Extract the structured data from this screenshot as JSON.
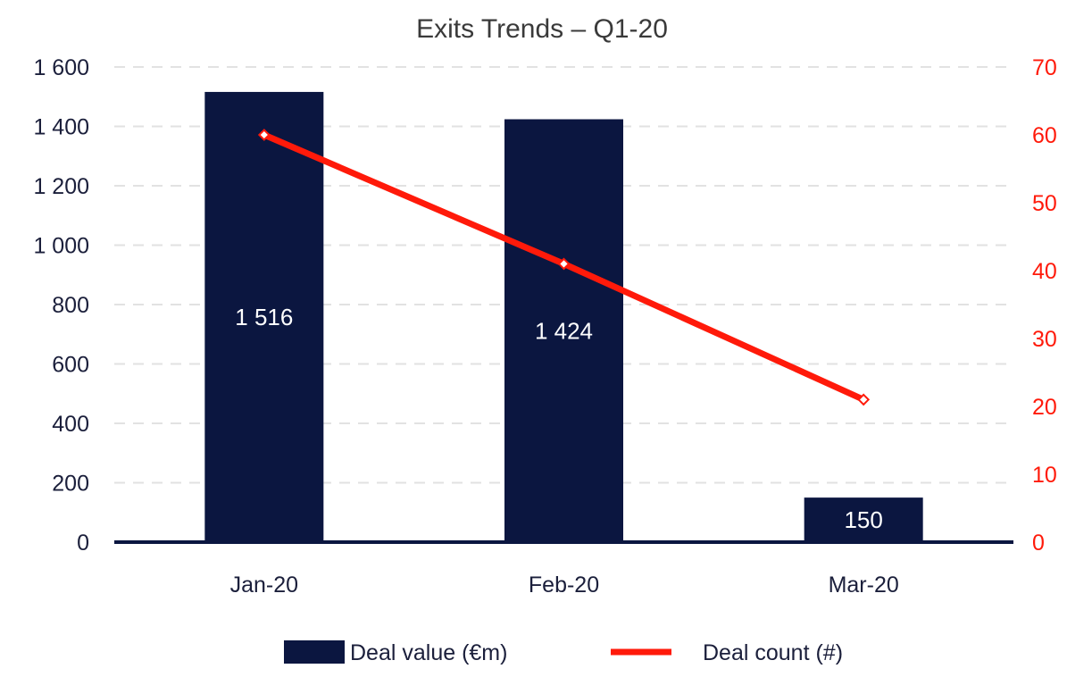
{
  "chart_data": {
    "type": "bar",
    "title": "Exits Trends – Q1-20",
    "categories": [
      "Jan-20",
      "Feb-20",
      "Mar-20"
    ],
    "series": [
      {
        "name": "Deal value (€m)",
        "type": "bar",
        "axis": "left",
        "values": [
          1516,
          1424,
          150
        ],
        "data_labels": [
          "1 516",
          "1 424",
          "150"
        ]
      },
      {
        "name": "Deal count (#)",
        "type": "line",
        "axis": "right",
        "values": [
          60,
          41,
          21
        ]
      }
    ],
    "y_left": {
      "range": [
        0,
        1600
      ],
      "ticks": [
        0,
        200,
        400,
        600,
        800,
        1000,
        1200,
        1400,
        1600
      ],
      "tick_labels": [
        "0",
        "200",
        "400",
        "600",
        "800",
        "1 000",
        "1 200",
        "1 400",
        "1 600"
      ]
    },
    "y_right": {
      "range": [
        0,
        70
      ],
      "ticks": [
        0,
        10,
        20,
        30,
        40,
        50,
        60,
        70
      ],
      "tick_labels": [
        "0",
        "10",
        "20",
        "30",
        "40",
        "50",
        "60",
        "70"
      ]
    },
    "grid": true,
    "legend": "bottom-center",
    "colors": {
      "bar": "#0b1640",
      "line": "#ff1a0a",
      "left_axis_text": "#1b1f3b",
      "right_axis_text": "#ff1a0a",
      "grid": "#e2e2e2",
      "baseline": "#0b1640"
    }
  }
}
